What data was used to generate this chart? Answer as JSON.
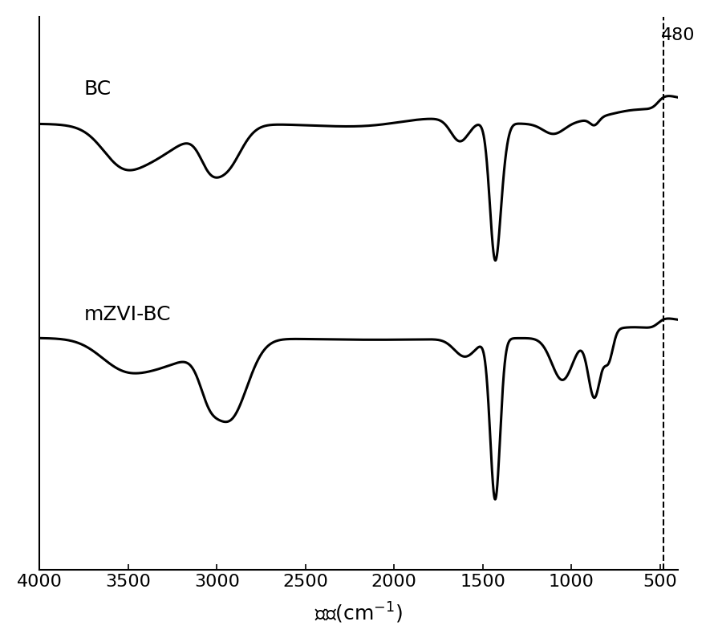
{
  "title": "",
  "xlabel": "波长(cm⁻¹)",
  "xlim_left": 4000,
  "xlim_right": 400,
  "dashed_line_x": 480,
  "dashed_line_label": "480",
  "bc_label": "BC",
  "mzvi_label": "mZVI-BC",
  "line_color": "#000000",
  "background_color": "#ffffff",
  "xticks": [
    4000,
    3500,
    3000,
    2500,
    2000,
    1500,
    1000,
    500
  ],
  "fontsize_label": 18,
  "fontsize_tick": 16,
  "fontsize_annotation": 16
}
